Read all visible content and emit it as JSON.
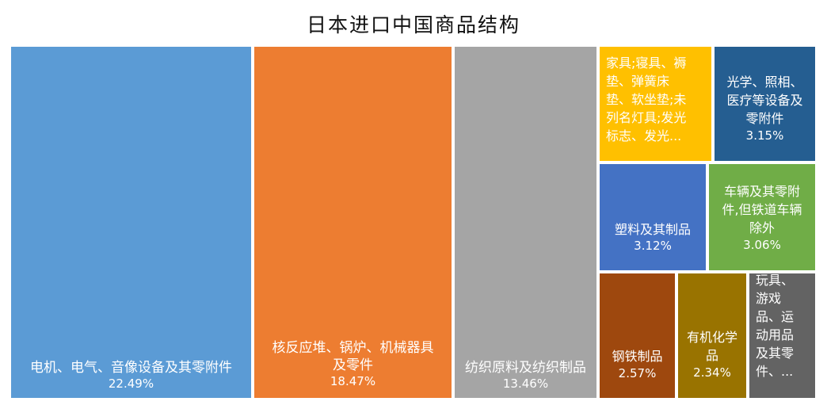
{
  "chart_data": {
    "type": "treemap",
    "title": "日本进口中国商品结构",
    "items": [
      {
        "label_lines": [
          "电机、电气、音像设备及其零附件"
        ],
        "value_label": "22.49%",
        "value": 22.49,
        "color": "#5b9bd5"
      },
      {
        "label_lines": [
          "核反应堆、锅炉、机械器具",
          "及零件"
        ],
        "value_label": "18.47%",
        "value": 18.47,
        "color": "#ed7d31"
      },
      {
        "label_lines": [
          "纺织原料及纺织制品"
        ],
        "value_label": "13.46%",
        "value": 13.46,
        "color": "#a5a5a5"
      },
      {
        "label_lines": [
          "家具;寝具、褥",
          "垫、弹簧床",
          "垫、软坐垫;未",
          "列名灯具;发光",
          "标志、发光..."
        ],
        "value_label": "",
        "value": null,
        "color": "#ffc000"
      },
      {
        "label_lines": [
          "光学、照相、",
          "医疗等设备及",
          "零附件"
        ],
        "value_label": "3.15%",
        "value": 3.15,
        "color": "#255e91"
      },
      {
        "label_lines": [
          "塑料及其制品"
        ],
        "value_label": "3.12%",
        "value": 3.12,
        "color": "#4472c4"
      },
      {
        "label_lines": [
          "车辆及其零附",
          "件,但铁道车辆",
          "除外"
        ],
        "value_label": "3.06%",
        "value": 3.06,
        "color": "#70ad47"
      },
      {
        "label_lines": [
          "钢铁制品"
        ],
        "value_label": "2.57%",
        "value": 2.57,
        "color": "#9e480e"
      },
      {
        "label_lines": [
          "有机化学",
          "品"
        ],
        "value_label": "2.34%",
        "value": 2.34,
        "color": "#997300"
      },
      {
        "label_lines": [
          "玩具、",
          "游戏",
          "品、运",
          "动用品",
          "及其零",
          "件、..."
        ],
        "value_label": "",
        "value": null,
        "color": "#636363"
      }
    ]
  }
}
